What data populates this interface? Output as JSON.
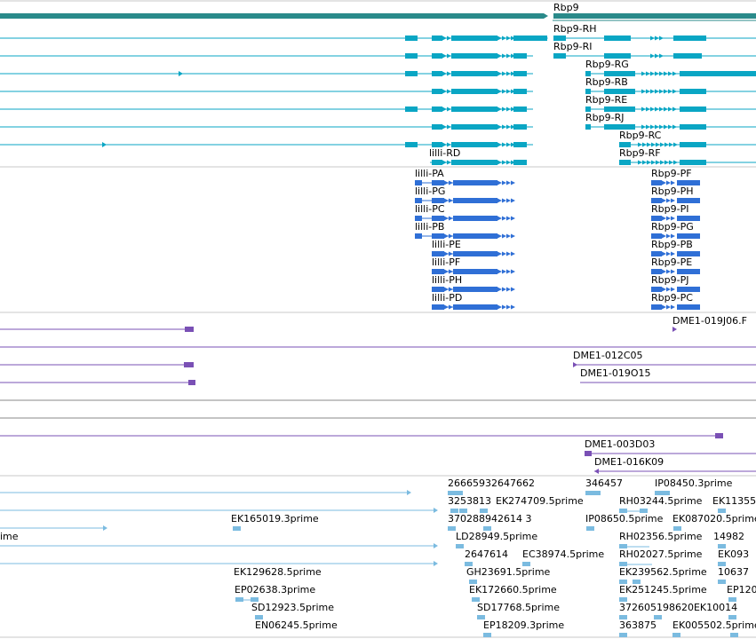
{
  "colors": {
    "gene": "#2a8a8a",
    "transcript": "#0aa6c4",
    "cds": "#2f6fd6",
    "clone": "#7a50b5",
    "est": "#7bbbe0",
    "divider": "#c8c8c8"
  },
  "gene": {
    "name": "Rbp9"
  },
  "transcripts": {
    "rbp9": [
      "Rbp9-RH",
      "Rbp9-RI",
      "Rbp9-RG",
      "Rbp9-RB",
      "Rbp9-RE",
      "Rbp9-RJ",
      "Rbp9-RC",
      "Rbp9-RF"
    ],
    "lilli": [
      "lilli-RD"
    ]
  },
  "proteins": {
    "lilli": [
      "lilli-PA",
      "lilli-PG",
      "lilli-PC",
      "lilli-PB",
      "lilli-PE",
      "lilli-PF",
      "lilli-PH",
      "lilli-PD"
    ],
    "rbp9": [
      "Rbp9-PF",
      "Rbp9-PH",
      "Rbp9-PI",
      "Rbp9-PG",
      "Rbp9-PB",
      "Rbp9-PE",
      "Rbp9-PJ",
      "Rbp9-PC"
    ]
  },
  "clones": [
    "DME1-019J06.F",
    "DME1-012C05",
    "DME1-019O15",
    "DME1-003D03",
    "DME1-016K09"
  ],
  "ests": [
    "EK165019.3prime",
    "EK129628.5prime",
    "EP02638.3prime",
    "SD12923.5prime",
    "EN06245.5prime",
    "26665932647662",
    "3253813",
    "EK274709.5prime",
    "370288942614 3",
    "LD28949.5prime",
    "2647614",
    "EC38974.5prime",
    "GH23691.5prime",
    "EK172660.5prime",
    "SD17768.5prime",
    "EP18209.3prime",
    "346457",
    "IP08450.3prime",
    "RH03244.5prime",
    "EK11355",
    "IP08650.5prime",
    "EK087020.5prime",
    "RH02356.5prime",
    "14982",
    "RH02027.5prime",
    "EK093",
    "EK239562.5prime",
    "10637",
    "EK251245.5prime",
    "EP120",
    "372605198620EK10014",
    "363875",
    "EK005502.5prime",
    "ime"
  ]
}
